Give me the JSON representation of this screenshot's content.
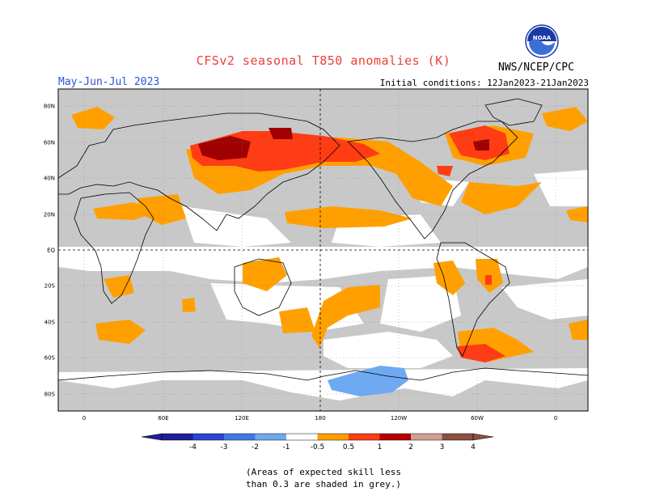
{
  "header": {
    "title": "CFSv2 seasonal T850 anomalies (K)",
    "season": "May-Jun-Jul 2023",
    "initial_conditions": "Initial conditions: 12Jan2023-21Jan2023",
    "agency": "NWS/NCEP/CPC",
    "logo_text": "NOAA"
  },
  "map": {
    "lat_labels": [
      "80N",
      "60N",
      "40N",
      "20N",
      "EQ",
      "20S",
      "40S",
      "60S",
      "80S"
    ],
    "lon_labels": [
      "0",
      "60E",
      "120E",
      "180",
      "120W",
      "60W",
      "0"
    ]
  },
  "colorbar": {
    "labels": [
      "-4",
      "-3",
      "-2",
      "-1",
      "-0.5",
      "0.5",
      "1",
      "2",
      "3",
      "4"
    ],
    "colors": [
      "#1e1e96",
      "#2845d2",
      "#3f79e6",
      "#6ea9f2",
      "#ffffff",
      "#ffa000",
      "#ff3c14",
      "#b40000",
      "#d0a090",
      "#8c5040"
    ]
  },
  "legend_note": {
    "line1": "(Areas of expected skill less",
    "line2": "than 0.3 are shaded in grey.)"
  },
  "colors": {
    "grey_shade": "#c8c8c8",
    "orange": "#ffa000",
    "red": "#ff3c14",
    "darkred": "#a00000",
    "lightblue": "#6ea9f2"
  }
}
